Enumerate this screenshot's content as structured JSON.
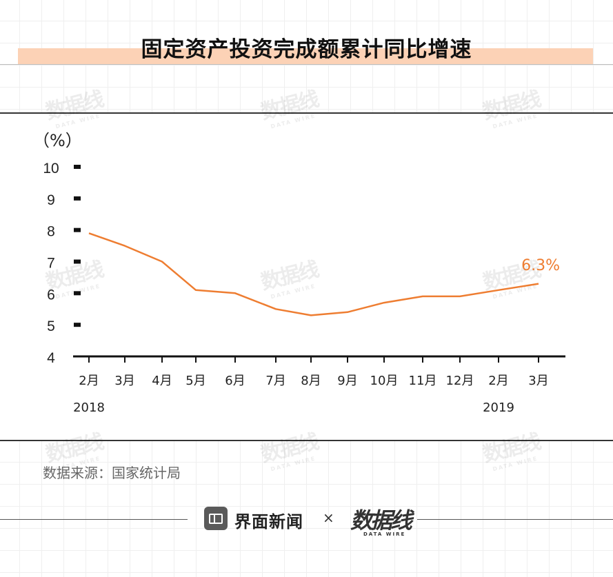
{
  "title": "固定资产投资完成额累计同比增速",
  "unit_label": "（%）",
  "source": "数据来源：国家统计局",
  "watermark": "数据线",
  "watermark_sub": "DATA WIRE",
  "footer": {
    "brand": "界面新闻",
    "times": "×",
    "partner": "数据线",
    "partner_sub": "DATA WIRE"
  },
  "colors": {
    "line": "#ee7d31",
    "title_band": "#fcd2b6",
    "axis": "#111111"
  },
  "chart_data": {
    "type": "line",
    "title": "固定资产投资完成额累计同比增速",
    "ylabel": "（%）",
    "xlabel": "",
    "categories": [
      "2月",
      "3月",
      "4月",
      "5月",
      "6月",
      "7月",
      "8月",
      "9月",
      "10月",
      "11月",
      "12月",
      "2月",
      "3月"
    ],
    "year_labels": [
      {
        "index": 0,
        "text": "2018"
      },
      {
        "index": 11,
        "text": "2019"
      }
    ],
    "series": [
      {
        "values": [
          7.9,
          7.5,
          7.0,
          6.1,
          6.0,
          5.5,
          5.3,
          5.4,
          5.7,
          5.9,
          5.9,
          6.1,
          6.3
        ]
      }
    ],
    "annotation": {
      "index": 12,
      "text": "6.3%"
    },
    "yticks": [
      4,
      5,
      6,
      7,
      8,
      9,
      10
    ],
    "ylim": [
      4,
      10
    ],
    "grid": false,
    "legend": "none"
  }
}
